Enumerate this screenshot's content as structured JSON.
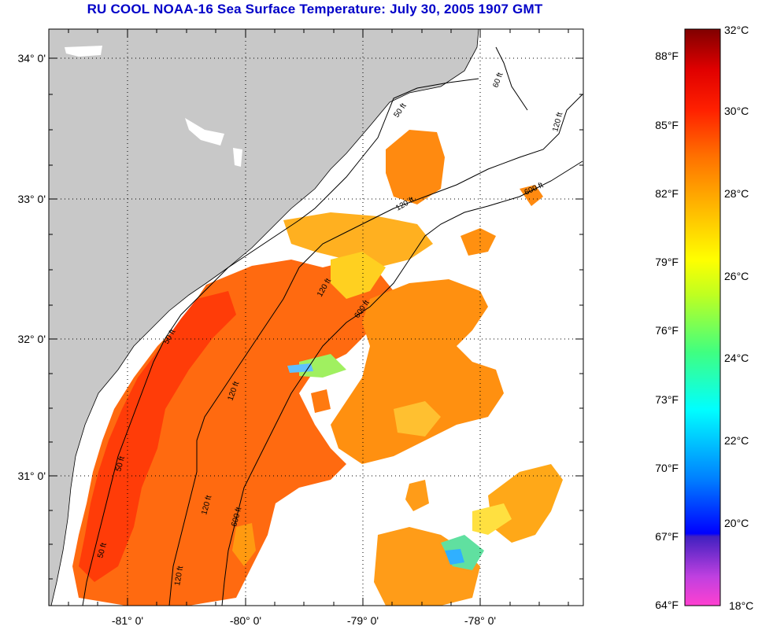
{
  "title": "RU COOL  NOAA-16  Sea Surface Temperature:  July 30, 2005 1907 GMT",
  "colors": {
    "land": "#c8c8c8",
    "ocean_nodata": "#ffffff",
    "title": "#0000c8",
    "grid": "#000000"
  },
  "map": {
    "lat_labels": [
      "34° 0'",
      "33° 0'",
      "32° 0'",
      "31° 0'"
    ],
    "lon_labels": [
      "-81° 0'",
      "-80° 0'",
      "-79° 0'",
      "-78° 0'"
    ],
    "contour_labels": [
      "50 ft",
      "120 ft",
      "600 ft"
    ],
    "contour_label_instances": [
      "60 ft",
      "50 ft",
      "120 ft",
      "600 ft",
      "120 ft",
      "120 ft",
      "600 ft",
      "50 ft",
      "120 ft",
      "120 ft",
      "50 ft",
      "120 ft",
      "600 ft",
      "50 ft"
    ]
  },
  "colorbar": {
    "fahrenheit_labels": [
      "88°F",
      "85°F",
      "82°F",
      "79°F",
      "76°F",
      "73°F",
      "70°F",
      "67°F",
      "64°F"
    ],
    "celsius_labels": [
      "32°C",
      "30°C",
      "28°C",
      "26°C",
      "24°C",
      "22°C",
      "20°C",
      "18°C"
    ],
    "celsius_range": [
      18,
      32
    ]
  }
}
